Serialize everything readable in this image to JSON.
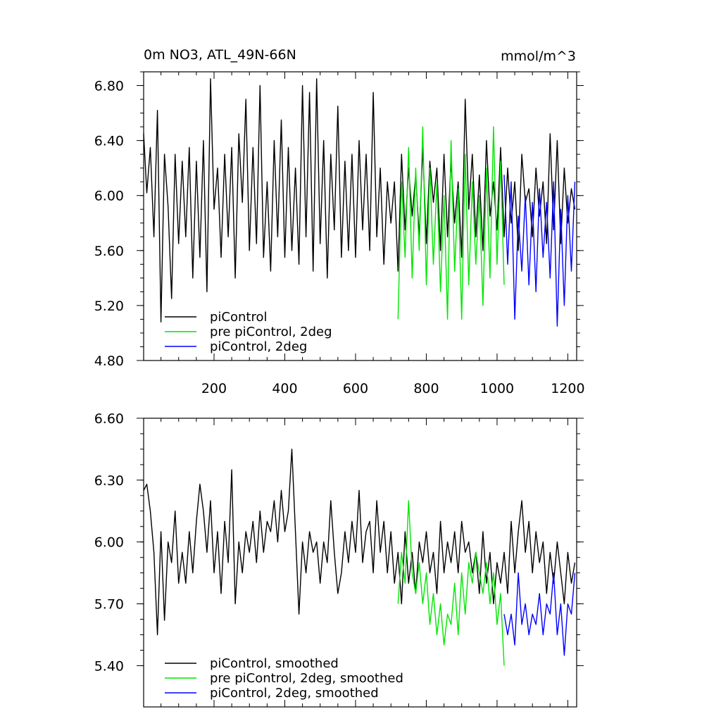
{
  "chart_data": [
    {
      "type": "line",
      "title": "0m NO3, ATL_49N-66N",
      "units": "mmol/m^3",
      "xlabel": "",
      "ylabel": "",
      "xlim": [
        1,
        1225
      ],
      "ylim": [
        4.8,
        6.9
      ],
      "xticks": [
        200,
        400,
        600,
        800,
        1000,
        1200
      ],
      "xtick_labels": [
        "200",
        "400",
        "600",
        "800",
        "1000",
        "1200"
      ],
      "yticks": [
        4.8,
        5.2,
        5.6,
        6.0,
        6.4,
        6.8
      ],
      "ytick_labels": [
        "4.80",
        "5.20",
        "5.60",
        "6.00",
        "6.40",
        "6.80"
      ],
      "grid": false,
      "legend_position": "bottom-left",
      "series": [
        {
          "name": "piControl",
          "color": "#000000",
          "x": [
            1,
            10,
            20,
            30,
            40,
            50,
            60,
            70,
            80,
            90,
            100,
            110,
            120,
            130,
            140,
            150,
            160,
            170,
            180,
            190,
            200,
            210,
            220,
            230,
            240,
            250,
            260,
            270,
            280,
            290,
            300,
            310,
            320,
            330,
            340,
            350,
            360,
            370,
            380,
            390,
            400,
            410,
            420,
            430,
            440,
            450,
            460,
            470,
            480,
            490,
            500,
            510,
            520,
            530,
            540,
            550,
            560,
            570,
            580,
            590,
            600,
            610,
            620,
            630,
            640,
            650,
            660,
            670,
            680,
            690,
            700,
            710,
            720,
            730,
            740,
            750,
            760,
            770,
            780,
            790,
            800,
            810,
            820,
            830,
            840,
            850,
            860,
            870,
            880,
            890,
            900,
            910,
            920,
            930,
            940,
            950,
            960,
            970,
            980,
            990,
            1000,
            1010,
            1020,
            1030,
            1040,
            1050,
            1060,
            1070,
            1080,
            1090,
            1100,
            1110,
            1120,
            1130,
            1140,
            1150,
            1160,
            1170,
            1180,
            1190,
            1200,
            1210,
            1220
          ],
          "y": [
            6.45,
            6.02,
            6.35,
            5.7,
            6.62,
            5.08,
            6.3,
            5.92,
            5.25,
            6.3,
            5.65,
            6.25,
            5.7,
            6.35,
            5.4,
            6.25,
            5.55,
            6.4,
            5.3,
            6.85,
            5.9,
            6.2,
            5.55,
            6.3,
            5.7,
            6.35,
            5.4,
            6.45,
            5.95,
            6.7,
            5.6,
            6.35,
            5.65,
            6.8,
            5.55,
            6.1,
            5.45,
            6.4,
            5.7,
            6.55,
            5.55,
            6.35,
            5.6,
            6.2,
            5.5,
            6.8,
            5.7,
            6.75,
            5.45,
            6.85,
            5.65,
            6.4,
            5.4,
            6.3,
            5.75,
            6.65,
            5.55,
            6.25,
            5.6,
            6.3,
            5.55,
            6.4,
            5.75,
            6.3,
            5.6,
            6.75,
            5.7,
            6.2,
            5.5,
            6.1,
            5.8,
            6.1,
            5.45,
            6.3,
            5.75,
            6.2,
            5.85,
            6.15,
            5.7,
            6.35,
            5.65,
            6.25,
            5.95,
            6.2,
            5.6,
            6.3,
            5.7,
            6.25,
            5.8,
            6.1,
            5.55,
            6.7,
            5.9,
            6.3,
            5.7,
            6.15,
            5.6,
            6.4,
            5.85,
            6.1,
            5.75,
            6.35,
            5.7,
            6.2,
            5.8,
            6.1,
            5.6,
            6.3,
            5.95,
            6.05,
            5.7,
            6.2,
            5.85,
            6.1,
            5.65,
            6.45,
            5.75,
            6.4,
            5.65,
            6.2,
            5.8,
            6.05,
            5.9
          ]
        },
        {
          "name": "pre piControl, 2deg",
          "color": "#00e600",
          "x": [
            720,
            730,
            740,
            750,
            760,
            770,
            780,
            790,
            800,
            810,
            820,
            830,
            840,
            850,
            860,
            870,
            880,
            890,
            900,
            910,
            920,
            930,
            940,
            950,
            960,
            970,
            980,
            990,
            1000,
            1010,
            1020
          ],
          "y": [
            5.1,
            6.1,
            5.55,
            6.35,
            5.4,
            6.2,
            5.6,
            6.5,
            5.35,
            6.2,
            5.5,
            6.1,
            5.3,
            6.0,
            5.1,
            6.4,
            5.45,
            6.05,
            5.1,
            6.3,
            5.35,
            6.1,
            5.5,
            6.0,
            5.2,
            6.2,
            5.4,
            6.5,
            5.5,
            6.25,
            5.35
          ]
        },
        {
          "name": "piControl, 2deg",
          "color": "#0000ff",
          "x": [
            1020,
            1030,
            1040,
            1050,
            1060,
            1070,
            1080,
            1090,
            1100,
            1110,
            1120,
            1130,
            1140,
            1150,
            1160,
            1170,
            1180,
            1190,
            1200,
            1210,
            1220
          ],
          "y": [
            6.15,
            5.5,
            6.1,
            5.1,
            5.85,
            5.45,
            6.0,
            5.35,
            5.95,
            5.3,
            6.05,
            5.55,
            5.95,
            5.4,
            6.1,
            5.05,
            5.9,
            5.2,
            6.0,
            5.45,
            6.1
          ]
        }
      ]
    },
    {
      "type": "line",
      "title": "",
      "xlabel": "",
      "ylabel": "",
      "xlim": [
        1,
        1225
      ],
      "ylim": [
        5.2,
        6.6
      ],
      "xticks": [
        200,
        400,
        600,
        800,
        1000,
        1200
      ],
      "xtick_labels": [],
      "yticks": [
        5.4,
        5.7,
        6.0,
        6.3,
        6.6
      ],
      "ytick_labels": [
        "5.40",
        "5.70",
        "6.00",
        "6.30",
        "6.60"
      ],
      "grid": false,
      "legend_position": "bottom-left",
      "series": [
        {
          "name": "piControl, smoothed",
          "color": "#000000",
          "x": [
            1,
            10,
            20,
            30,
            40,
            50,
            60,
            70,
            80,
            90,
            100,
            110,
            120,
            130,
            140,
            150,
            160,
            170,
            180,
            190,
            200,
            210,
            220,
            230,
            240,
            250,
            260,
            270,
            280,
            290,
            300,
            310,
            320,
            330,
            340,
            350,
            360,
            370,
            380,
            390,
            400,
            410,
            420,
            430,
            440,
            450,
            460,
            470,
            480,
            490,
            500,
            510,
            520,
            530,
            540,
            550,
            560,
            570,
            580,
            590,
            600,
            610,
            620,
            630,
            640,
            650,
            660,
            670,
            680,
            690,
            700,
            710,
            720,
            730,
            740,
            750,
            760,
            770,
            780,
            790,
            800,
            810,
            820,
            830,
            840,
            850,
            860,
            870,
            880,
            890,
            900,
            910,
            920,
            930,
            940,
            950,
            960,
            970,
            980,
            990,
            1000,
            1010,
            1020,
            1030,
            1040,
            1050,
            1060,
            1070,
            1080,
            1090,
            1100,
            1110,
            1120,
            1130,
            1140,
            1150,
            1160,
            1170,
            1180,
            1190,
            1200,
            1210,
            1220
          ],
          "y": [
            6.25,
            6.28,
            6.15,
            5.95,
            5.55,
            6.05,
            5.62,
            6.0,
            5.9,
            6.15,
            5.8,
            5.95,
            5.8,
            6.05,
            5.85,
            6.1,
            6.28,
            6.15,
            5.95,
            6.2,
            5.85,
            6.05,
            5.75,
            6.1,
            5.9,
            6.35,
            5.7,
            6.0,
            5.85,
            6.05,
            5.95,
            6.1,
            5.9,
            6.15,
            5.95,
            6.1,
            6.05,
            6.2,
            6.0,
            6.25,
            6.05,
            6.15,
            6.45,
            6.05,
            5.65,
            6.0,
            5.85,
            6.05,
            5.95,
            6.0,
            5.8,
            6.0,
            5.9,
            6.2,
            5.95,
            5.75,
            5.85,
            6.05,
            5.9,
            6.1,
            5.95,
            6.25,
            5.9,
            6.05,
            6.1,
            5.85,
            6.2,
            5.95,
            6.1,
            5.85,
            6.05,
            5.8,
            5.95,
            5.7,
            6.05,
            5.8,
            5.95,
            5.75,
            6.0,
            5.9,
            6.05,
            5.85,
            5.95,
            5.75,
            6.1,
            5.85,
            6.0,
            5.9,
            6.05,
            5.85,
            6.1,
            5.95,
            6.0,
            5.85,
            5.95,
            5.75,
            6.05,
            5.8,
            5.95,
            5.7,
            5.9,
            5.8,
            5.95,
            5.75,
            6.1,
            5.85,
            6.05,
            6.2,
            5.95,
            6.1,
            5.85,
            6.05,
            5.9,
            6.0,
            5.75,
            5.95,
            5.8,
            6.0,
            5.85,
            5.7,
            5.95,
            5.8,
            5.9
          ]
        },
        {
          "name": "pre piControl, 2deg, smoothed",
          "color": "#00e600",
          "x": [
            720,
            730,
            740,
            750,
            760,
            770,
            780,
            790,
            800,
            810,
            820,
            830,
            840,
            850,
            860,
            870,
            880,
            890,
            900,
            910,
            920,
            930,
            940,
            950,
            960,
            970,
            980,
            990,
            1000,
            1010,
            1020
          ],
          "y": [
            5.7,
            5.95,
            5.8,
            6.2,
            5.85,
            5.75,
            5.9,
            5.7,
            5.85,
            5.6,
            5.75,
            5.55,
            5.7,
            5.5,
            5.65,
            5.6,
            5.8,
            5.55,
            5.85,
            5.65,
            5.9,
            5.8,
            5.95,
            5.85,
            5.75,
            5.9,
            5.7,
            5.85,
            5.6,
            5.75,
            5.4
          ]
        },
        {
          "name": "piControl, 2deg, smoothed",
          "color": "#0000ff",
          "x": [
            1020,
            1030,
            1040,
            1050,
            1060,
            1070,
            1080,
            1090,
            1100,
            1110,
            1120,
            1130,
            1140,
            1150,
            1160,
            1170,
            1180,
            1190,
            1200,
            1210,
            1220
          ],
          "y": [
            5.65,
            5.55,
            5.65,
            5.5,
            5.85,
            5.6,
            5.7,
            5.55,
            5.65,
            5.6,
            5.75,
            5.55,
            5.7,
            5.65,
            5.85,
            5.55,
            5.7,
            5.45,
            5.7,
            5.65,
            5.85
          ]
        }
      ]
    }
  ]
}
